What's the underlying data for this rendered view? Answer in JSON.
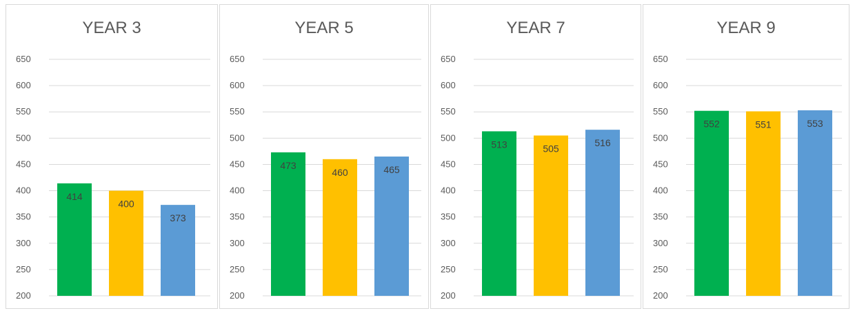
{
  "colors": {
    "green": "#00B050",
    "yellow": "#FFC000",
    "blue": "#5B9BD5",
    "grid": "#D9D9D9",
    "text": "#595959"
  },
  "chart_data": [
    {
      "type": "bar",
      "title": "YEAR 3",
      "ylim": [
        200,
        650
      ],
      "yticks": [
        "650",
        "600",
        "550",
        "500",
        "450",
        "400",
        "350",
        "300",
        "250",
        "200"
      ],
      "grid": true,
      "series": [
        {
          "values": [
            414,
            400,
            373
          ],
          "colors": [
            "#00B050",
            "#FFC000",
            "#5B9BD5"
          ]
        }
      ]
    },
    {
      "type": "bar",
      "title": "YEAR 5",
      "ylim": [
        200,
        650
      ],
      "yticks": [
        "650",
        "600",
        "550",
        "500",
        "450",
        "400",
        "350",
        "300",
        "250",
        "200"
      ],
      "grid": true,
      "series": [
        {
          "values": [
            473,
            460,
            465
          ],
          "colors": [
            "#00B050",
            "#FFC000",
            "#5B9BD5"
          ]
        }
      ]
    },
    {
      "type": "bar",
      "title": "YEAR 7",
      "ylim": [
        200,
        650
      ],
      "yticks": [
        "650",
        "600",
        "550",
        "500",
        "450",
        "400",
        "350",
        "300",
        "250",
        "200"
      ],
      "grid": true,
      "series": [
        {
          "values": [
            513,
            505,
            516
          ],
          "colors": [
            "#00B050",
            "#FFC000",
            "#5B9BD5"
          ]
        }
      ]
    },
    {
      "type": "bar",
      "title": "YEAR 9",
      "ylim": [
        200,
        650
      ],
      "yticks": [
        "650",
        "600",
        "550",
        "500",
        "450",
        "400",
        "350",
        "300",
        "250",
        "200"
      ],
      "grid": true,
      "series": [
        {
          "values": [
            552,
            551,
            553
          ],
          "colors": [
            "#00B050",
            "#FFC000",
            "#5B9BD5"
          ]
        }
      ]
    }
  ]
}
